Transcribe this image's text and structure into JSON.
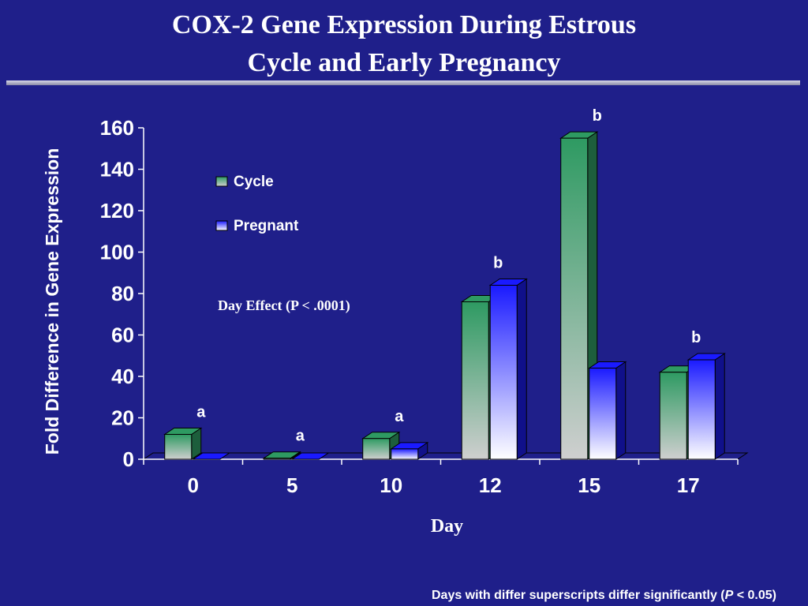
{
  "title": {
    "line1": "COX-2 Gene Expression During Estrous",
    "line2": "Cycle and Early Pregnancy"
  },
  "footnote": {
    "prefix": "Days with differ superscripts differ significantly (",
    "p_symbol": "P",
    "suffix": " < 0.05)"
  },
  "colors": {
    "background": "#1f1f8a",
    "cycle": "#2e9a62",
    "pregnant": "#1a1aff",
    "text": "#ffffff",
    "annotation_text": "#000000"
  },
  "chart_data": {
    "type": "bar",
    "title": "COX-2 Gene Expression During Estrous Cycle and Early Pregnancy",
    "xlabel": "Day",
    "ylabel": "Fold Difference in Gene Expression",
    "categories": [
      "0",
      "5",
      "10",
      "12",
      "15",
      "17"
    ],
    "series": [
      {
        "name": "Cycle",
        "values": [
          12,
          0.5,
          10,
          76,
          155,
          42
        ]
      },
      {
        "name": "Pregnant",
        "values": [
          0,
          0,
          5,
          84,
          44,
          48
        ]
      }
    ],
    "ylim": [
      0,
      160
    ],
    "yticks": [
      "0",
      "20",
      "40",
      "60",
      "80",
      "100",
      "120",
      "140",
      "160"
    ],
    "legend": "upper-left",
    "grid": false,
    "annotation": "Day Effect (P < .0001)",
    "superscripts": [
      "a",
      "a",
      "a",
      "b",
      "b",
      "b"
    ]
  }
}
